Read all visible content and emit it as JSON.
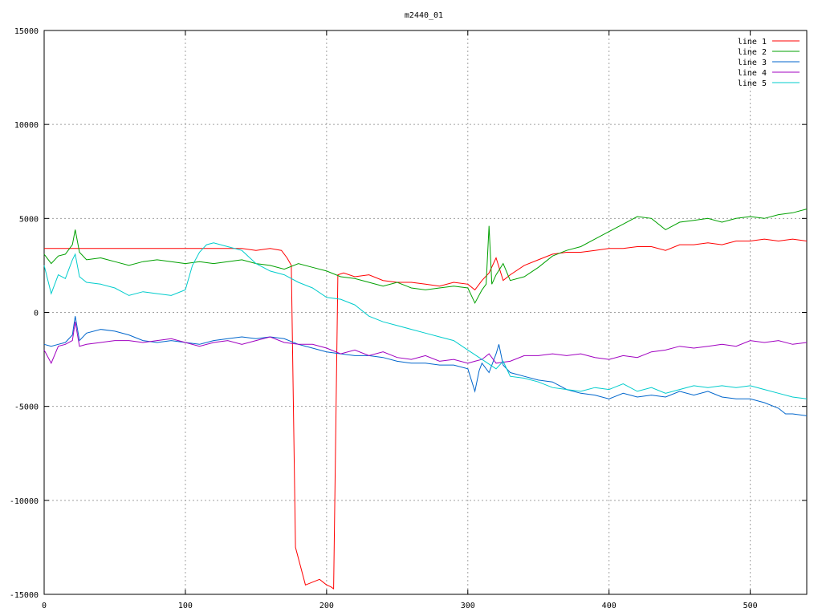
{
  "chart_data": {
    "type": "line",
    "title": "m2440_01",
    "xlabel": "",
    "ylabel": "",
    "xlim": [
      0,
      540
    ],
    "ylim": [
      -15000,
      15000
    ],
    "x_ticks": [
      0,
      100,
      200,
      300,
      400,
      500
    ],
    "y_ticks": [
      -15000,
      -10000,
      -5000,
      0,
      5000,
      10000,
      15000
    ],
    "x_tick_labels": [
      "0",
      "100",
      "200",
      "300",
      "400",
      "500"
    ],
    "y_tick_labels": [
      "-15000",
      "-10000",
      "-5000",
      "0",
      "5000",
      "10000",
      "15000"
    ],
    "grid": true,
    "legend_position": "top-right",
    "series": [
      {
        "name": "line 1",
        "color": "#ff0000",
        "x": [
          0,
          140,
          150,
          160,
          168,
          172,
          175,
          178,
          185,
          195,
          200,
          203,
          205,
          208,
          212,
          220,
          230,
          240,
          250,
          260,
          270,
          280,
          290,
          300,
          305,
          310,
          315,
          320,
          325,
          330,
          340,
          350,
          360,
          370,
          380,
          390,
          400,
          410,
          420,
          430,
          440,
          450,
          460,
          470,
          480,
          490,
          500,
          510,
          520,
          530,
          540
        ],
        "y": [
          3400,
          3400,
          3300,
          3400,
          3300,
          2900,
          2500,
          -12500,
          -14500,
          -14200,
          -14500,
          -14600,
          -14700,
          2000,
          2100,
          1900,
          2000,
          1700,
          1600,
          1600,
          1500,
          1400,
          1600,
          1500,
          1200,
          1700,
          2100,
          2900,
          1700,
          2000,
          2500,
          2800,
          3100,
          3200,
          3200,
          3300,
          3400,
          3400,
          3500,
          3500,
          3300,
          3600,
          3600,
          3700,
          3600,
          3800,
          3800,
          3900,
          3800,
          3900,
          3800
        ]
      },
      {
        "name": "line 2",
        "color": "#00a000",
        "x": [
          0,
          5,
          10,
          15,
          20,
          22,
          25,
          30,
          40,
          50,
          60,
          70,
          80,
          90,
          100,
          110,
          120,
          130,
          140,
          150,
          160,
          170,
          180,
          190,
          200,
          210,
          220,
          230,
          240,
          250,
          260,
          270,
          280,
          290,
          300,
          305,
          310,
          313,
          315,
          317,
          320,
          325,
          330,
          340,
          350,
          360,
          370,
          380,
          390,
          400,
          410,
          420,
          430,
          440,
          450,
          460,
          470,
          480,
          490,
          500,
          510,
          520,
          530,
          540
        ],
        "y": [
          3100,
          2600,
          3000,
          3100,
          3600,
          4400,
          3200,
          2800,
          2900,
          2700,
          2500,
          2700,
          2800,
          2700,
          2600,
          2700,
          2600,
          2700,
          2800,
          2600,
          2500,
          2300,
          2600,
          2400,
          2200,
          1900,
          1800,
          1600,
          1400,
          1600,
          1300,
          1200,
          1300,
          1400,
          1300,
          500,
          1200,
          1500,
          4600,
          1500,
          2000,
          2600,
          1700,
          1900,
          2400,
          3000,
          3300,
          3500,
          3900,
          4300,
          4700,
          5100,
          5000,
          4400,
          4800,
          4900,
          5000,
          4800,
          5000,
          5100,
          5000,
          5200,
          5300,
          5500
        ]
      },
      {
        "name": "line 3",
        "color": "#0066cc",
        "x": [
          0,
          5,
          10,
          15,
          20,
          22,
          25,
          30,
          40,
          50,
          60,
          70,
          80,
          90,
          100,
          110,
          120,
          130,
          140,
          150,
          160,
          170,
          180,
          190,
          200,
          210,
          220,
          230,
          240,
          250,
          260,
          270,
          280,
          290,
          300,
          305,
          308,
          310,
          315,
          320,
          322,
          325,
          330,
          340,
          350,
          360,
          370,
          380,
          390,
          400,
          410,
          420,
          430,
          440,
          450,
          460,
          470,
          480,
          490,
          500,
          510,
          520,
          525,
          530,
          540
        ],
        "y": [
          -1700,
          -1800,
          -1700,
          -1600,
          -1200,
          -200,
          -1500,
          -1100,
          -900,
          -1000,
          -1200,
          -1500,
          -1600,
          -1500,
          -1600,
          -1700,
          -1500,
          -1400,
          -1300,
          -1400,
          -1300,
          -1400,
          -1700,
          -1900,
          -2100,
          -2200,
          -2300,
          -2300,
          -2400,
          -2600,
          -2700,
          -2700,
          -2800,
          -2800,
          -3000,
          -4200,
          -3100,
          -2700,
          -3200,
          -2200,
          -1700,
          -2800,
          -3200,
          -3400,
          -3600,
          -3700,
          -4100,
          -4300,
          -4400,
          -4600,
          -4300,
          -4500,
          -4400,
          -4500,
          -4200,
          -4400,
          -4200,
          -4500,
          -4600,
          -4600,
          -4800,
          -5100,
          -5400,
          -5400,
          -5500
        ]
      },
      {
        "name": "line 4",
        "color": "#a000c0",
        "x": [
          0,
          5,
          10,
          15,
          20,
          22,
          25,
          30,
          40,
          50,
          60,
          70,
          80,
          90,
          100,
          110,
          120,
          130,
          140,
          150,
          160,
          170,
          180,
          190,
          200,
          210,
          220,
          230,
          240,
          250,
          260,
          270,
          280,
          290,
          300,
          305,
          310,
          315,
          320,
          330,
          340,
          350,
          360,
          370,
          380,
          390,
          400,
          410,
          420,
          430,
          440,
          450,
          460,
          470,
          480,
          490,
          500,
          510,
          520,
          530,
          540
        ],
        "y": [
          -2000,
          -2700,
          -1800,
          -1700,
          -1500,
          -500,
          -1800,
          -1700,
          -1600,
          -1500,
          -1500,
          -1600,
          -1500,
          -1400,
          -1600,
          -1800,
          -1600,
          -1500,
          -1700,
          -1500,
          -1300,
          -1600,
          -1700,
          -1700,
          -1900,
          -2200,
          -2000,
          -2300,
          -2100,
          -2400,
          -2500,
          -2300,
          -2600,
          -2500,
          -2700,
          -2600,
          -2500,
          -2200,
          -2700,
          -2600,
          -2300,
          -2300,
          -2200,
          -2300,
          -2200,
          -2400,
          -2500,
          -2300,
          -2400,
          -2100,
          -2000,
          -1800,
          -1900,
          -1800,
          -1700,
          -1800,
          -1500,
          -1600,
          -1500,
          -1700,
          -1600
        ]
      },
      {
        "name": "line 5",
        "color": "#00cccc",
        "x": [
          0,
          5,
          10,
          15,
          20,
          22,
          25,
          30,
          40,
          50,
          60,
          70,
          80,
          90,
          100,
          105,
          110,
          115,
          120,
          130,
          140,
          150,
          160,
          170,
          180,
          190,
          200,
          210,
          220,
          230,
          240,
          250,
          260,
          270,
          280,
          290,
          300,
          310,
          320,
          325,
          330,
          340,
          350,
          360,
          370,
          380,
          390,
          400,
          410,
          420,
          430,
          440,
          450,
          460,
          470,
          480,
          490,
          500,
          510,
          520,
          530,
          540
        ],
        "y": [
          2500,
          1000,
          2000,
          1800,
          2800,
          3100,
          1900,
          1600,
          1500,
          1300,
          900,
          1100,
          1000,
          900,
          1200,
          2500,
          3200,
          3600,
          3700,
          3500,
          3300,
          2600,
          2200,
          2000,
          1600,
          1300,
          800,
          700,
          400,
          -200,
          -500,
          -700,
          -900,
          -1100,
          -1300,
          -1500,
          -2000,
          -2500,
          -3000,
          -2600,
          -3400,
          -3500,
          -3700,
          -4000,
          -4100,
          -4200,
          -4000,
          -4100,
          -3800,
          -4200,
          -4000,
          -4300,
          -4100,
          -3900,
          -4000,
          -3900,
          -4000,
          -3900,
          -4100,
          -4300,
          -4500,
          -4600
        ]
      }
    ]
  }
}
